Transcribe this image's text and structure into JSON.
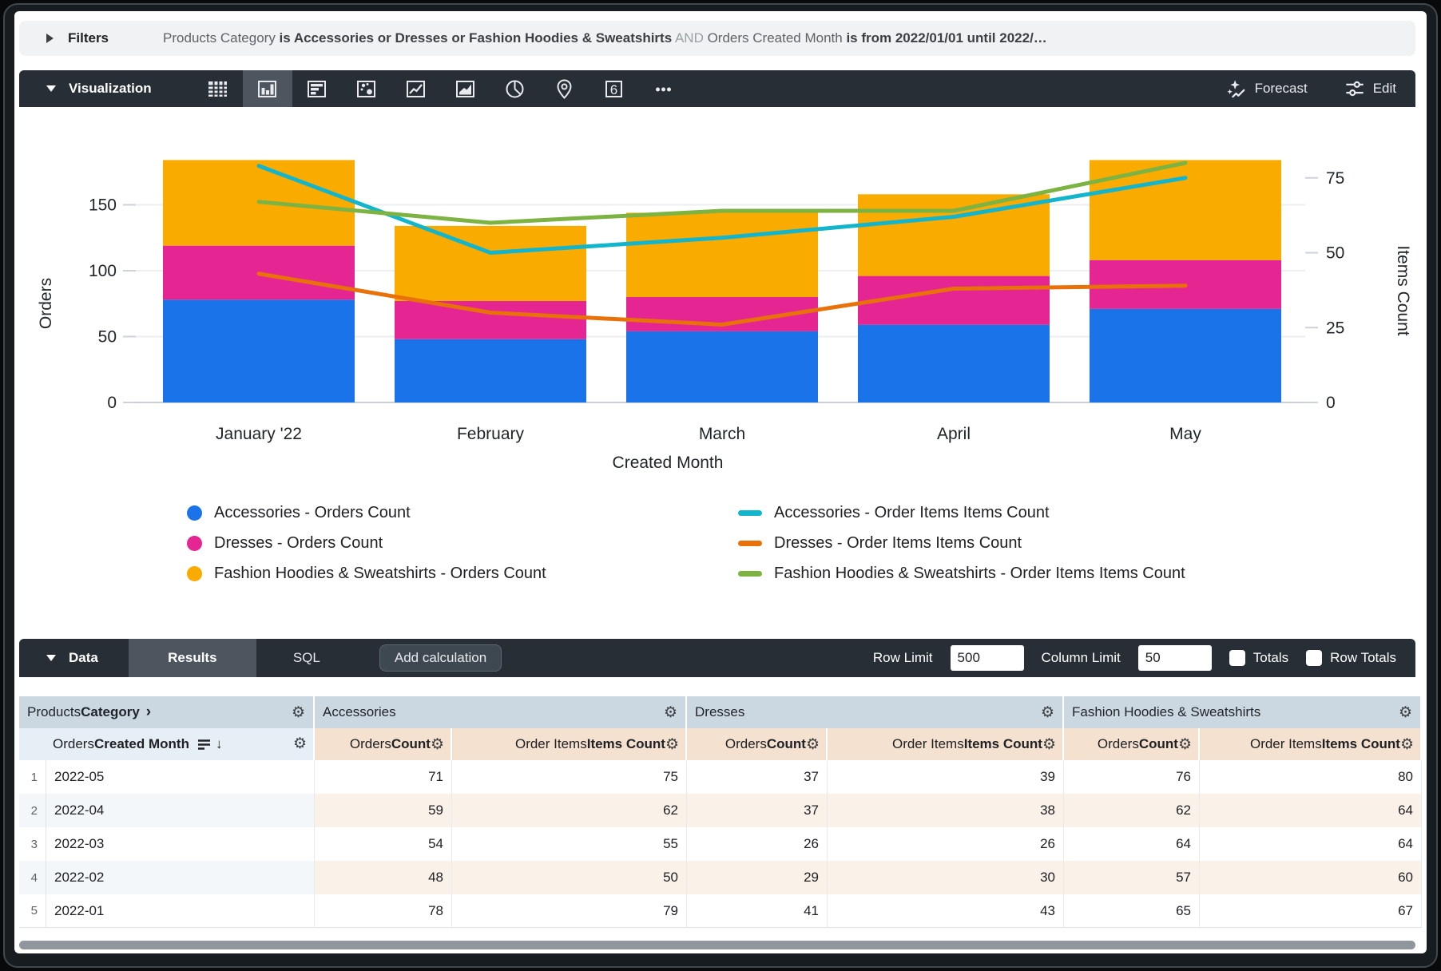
{
  "filters_bar": {
    "label": "Filters",
    "segments": [
      {
        "text": "Products Category",
        "style": "field"
      },
      {
        "text": "is Accessories or Dresses or Fashion Hoodies & Sweatshirts",
        "style": "condition"
      },
      {
        "text": "AND",
        "style": "conjunction"
      },
      {
        "text": "Orders Created Month",
        "style": "field"
      },
      {
        "text": "is from 2022/01/01 until 2022/…",
        "style": "condition"
      }
    ]
  },
  "viz_toolbar": {
    "title": "Visualization",
    "icons": [
      "table",
      "column-chart",
      "bar-chart",
      "scatter-plot",
      "line-chart",
      "area-chart",
      "pie-chart",
      "map",
      "single-value",
      "more"
    ],
    "selected_icon": "column-chart",
    "single_value_glyph": "6",
    "forecast_label": "Forecast",
    "edit_label": "Edit"
  },
  "chart_data": {
    "type": "combo-stacked-bar-line",
    "categories": [
      "January '22",
      "February",
      "March",
      "April",
      "May"
    ],
    "bar_series": [
      {
        "name": "Accessories - Orders Count",
        "color": "#1a73e8",
        "axis": "left",
        "values": [
          78,
          48,
          54,
          59,
          71
        ]
      },
      {
        "name": "Dresses - Orders Count",
        "color": "#e52592",
        "axis": "left",
        "values": [
          41,
          29,
          26,
          37,
          37
        ]
      },
      {
        "name": "Fashion Hoodies & Sweatshirts - Orders Count",
        "color": "#f9ab00",
        "axis": "left",
        "values": [
          65,
          57,
          64,
          62,
          76
        ]
      }
    ],
    "line_series": [
      {
        "name": "Accessories - Order Items Items Count",
        "color": "#12b5cb",
        "axis": "right",
        "values": [
          79,
          50,
          55,
          62,
          75
        ]
      },
      {
        "name": "Dresses - Order Items Items Count",
        "color": "#e8710a",
        "axis": "right",
        "values": [
          43,
          30,
          26,
          38,
          39
        ]
      },
      {
        "name": "Fashion Hoodies & Sweatshirts - Order Items Items Count",
        "color": "#7cb342",
        "axis": "right",
        "values": [
          67,
          60,
          64,
          64,
          80
        ]
      }
    ],
    "xlabel": "Created Month",
    "ylabel_left": "Orders",
    "ylabel_right": "Items Count",
    "yticks_left": [
      0,
      50,
      100,
      150
    ],
    "yticks_right": [
      0,
      25,
      50,
      75
    ],
    "ylim_left": [
      0,
      186
    ],
    "ylim_right": [
      0,
      82
    ],
    "grid": true,
    "legend_position": "bottom"
  },
  "data_panel": {
    "title": "Data",
    "tabs": [
      {
        "label": "Results",
        "selected": true
      },
      {
        "label": "SQL",
        "selected": false
      }
    ],
    "add_calculation_label": "Add calculation",
    "row_limit_label": "Row Limit",
    "row_limit_value": "500",
    "column_limit_label": "Column Limit",
    "column_limit_value": "50",
    "totals_label": "Totals",
    "totals_checked": false,
    "row_totals_label": "Row Totals",
    "row_totals_checked": false
  },
  "table": {
    "group_headers": [
      {
        "parts": [
          {
            "t": "Products ",
            "b": false
          },
          {
            "t": "Category",
            "b": true
          }
        ],
        "chevron": "›"
      },
      {
        "parts": [
          {
            "t": "Accessories",
            "b": false
          }
        ]
      },
      {
        "parts": [
          {
            "t": "Dresses",
            "b": false
          }
        ]
      },
      {
        "parts": [
          {
            "t": "Fashion Hoodies & Sweatshirts",
            "b": false
          }
        ]
      }
    ],
    "sub_headers": [
      {
        "parts": [
          {
            "t": "Orders ",
            "b": false
          },
          {
            "t": "Created Month",
            "b": true
          }
        ],
        "kind": "dimension"
      },
      {
        "parts": [
          {
            "t": "Orders ",
            "b": false
          },
          {
            "t": "Count",
            "b": true
          }
        ],
        "kind": "measure"
      },
      {
        "parts": [
          {
            "t": "Order Items ",
            "b": false
          },
          {
            "t": "Items Count",
            "b": true
          }
        ],
        "kind": "measure"
      },
      {
        "parts": [
          {
            "t": "Orders ",
            "b": false
          },
          {
            "t": "Count",
            "b": true
          }
        ],
        "kind": "measure"
      },
      {
        "parts": [
          {
            "t": "Order Items ",
            "b": false
          },
          {
            "t": "Items Count",
            "b": true
          }
        ],
        "kind": "measure"
      },
      {
        "parts": [
          {
            "t": "Orders ",
            "b": false
          },
          {
            "t": "Count",
            "b": true
          }
        ],
        "kind": "measure"
      },
      {
        "parts": [
          {
            "t": "Order Items ",
            "b": false
          },
          {
            "t": "Items Count",
            "b": true
          }
        ],
        "kind": "measure"
      }
    ],
    "rows": [
      {
        "index": "1",
        "dimension": "2022-05",
        "values": [
          "71",
          "75",
          "37",
          "39",
          "76",
          "80"
        ]
      },
      {
        "index": "2",
        "dimension": "2022-04",
        "values": [
          "59",
          "62",
          "37",
          "38",
          "62",
          "64"
        ]
      },
      {
        "index": "3",
        "dimension": "2022-03",
        "values": [
          "54",
          "55",
          "26",
          "26",
          "64",
          "64"
        ]
      },
      {
        "index": "4",
        "dimension": "2022-02",
        "values": [
          "48",
          "50",
          "29",
          "30",
          "57",
          "60"
        ]
      },
      {
        "index": "5",
        "dimension": "2022-01",
        "values": [
          "78",
          "79",
          "41",
          "43",
          "65",
          "67"
        ]
      }
    ]
  }
}
